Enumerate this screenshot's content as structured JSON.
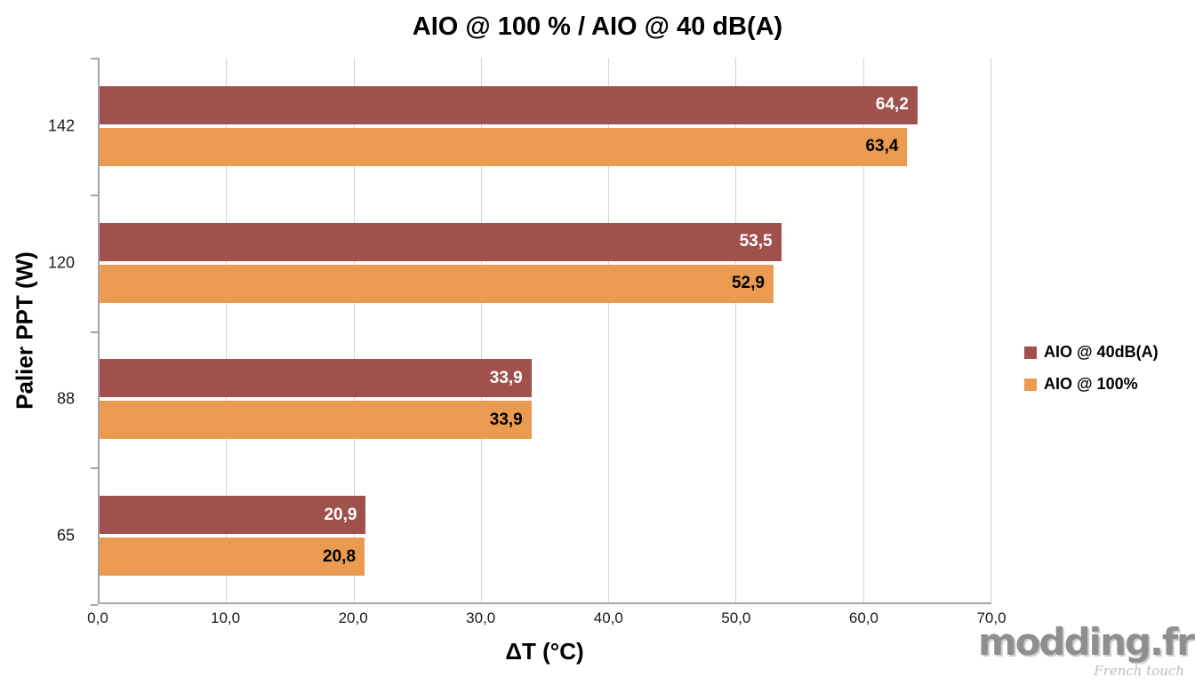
{
  "title": "AIO @ 100 % / AIO @ 40 dB(A)",
  "watermark": {
    "main": "modding.fr",
    "sub": "French touch"
  },
  "chart_data": {
    "type": "bar",
    "orientation": "horizontal",
    "title": "AIO @ 100 % / AIO @ 40 dB(A)",
    "xlabel": "ΔT (°C)",
    "ylabel": "Palier PPT (W)",
    "xlim": [
      0,
      70
    ],
    "xtick_step": 10,
    "xticks": [
      "0,0",
      "10,0",
      "20,0",
      "30,0",
      "40,0",
      "50,0",
      "60,0",
      "70,0"
    ],
    "grid": true,
    "legend_position": "center-right",
    "categories": [
      "142",
      "120",
      "88",
      "65"
    ],
    "series": [
      {
        "name": "AIO @ 40dB(A)",
        "color": "#A1514D",
        "label_color": "#FFFFFF",
        "values": [
          64.2,
          53.5,
          33.9,
          20.9
        ],
        "labels": [
          "64,2",
          "53,5",
          "33,9",
          "20,9"
        ]
      },
      {
        "name": "AIO @ 100%",
        "color": "#EB9B51",
        "label_color": "#000000",
        "values": [
          63.4,
          52.9,
          33.9,
          20.8
        ],
        "labels": [
          "63,4",
          "52,9",
          "33,9",
          "20,8"
        ]
      }
    ]
  }
}
